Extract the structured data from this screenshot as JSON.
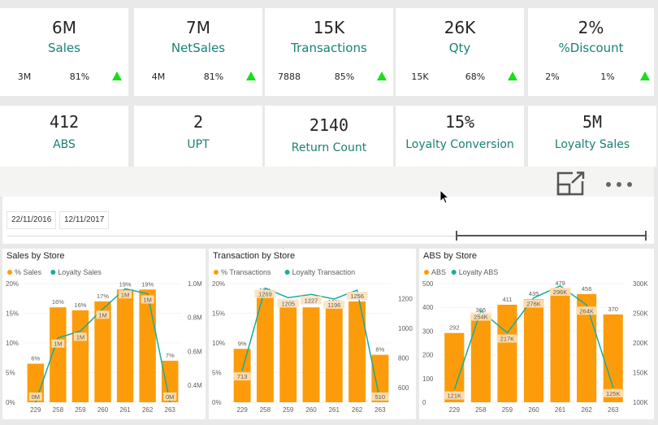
{
  "kpis_row1": [
    {
      "value": "6M",
      "label": "Sales",
      "prev": "3M",
      "pct": "81%",
      "trend": "up"
    },
    {
      "value": "7M",
      "label": "NetSales",
      "prev": "4M",
      "pct": "81%",
      "trend": "up"
    },
    {
      "value": "15K",
      "label": "Transactions",
      "prev": "7888",
      "pct": "85%",
      "trend": "up"
    },
    {
      "value": "26K",
      "label": "Qty",
      "prev": "15K",
      "pct": "68%",
      "trend": "up"
    },
    {
      "value": "2%",
      "label": "%Discount",
      "prev": "2%",
      "pct": "1%",
      "trend": "up"
    }
  ],
  "kpis_row2": [
    {
      "value": "412",
      "label": "ABS"
    },
    {
      "value": "2",
      "label": "UPT"
    },
    {
      "value": "2140",
      "label": "Return Count"
    },
    {
      "value": "15%",
      "label": "Loyalty Conversion"
    },
    {
      "value": "5M",
      "label": "Loyalty Sales"
    }
  ],
  "toolbar": {
    "focus_mode_icon": "expand-icon",
    "more_options_icon": "ellipsis-icon"
  },
  "date_slicer": {
    "start": "22/11/2016",
    "end": "12/11/2017",
    "range_start_fraction": 0.7,
    "range_end_fraction": 1.0
  },
  "colors": {
    "bar": "#fd9c0a",
    "bar_label_bg": "#fde2bd",
    "line": "#1aab9b",
    "label_teal": "#1a8174",
    "trend_up": "#16e016"
  },
  "chart_data": [
    {
      "type": "bar+line",
      "title": "Sales by Store",
      "legend": [
        "% Sales",
        "Loyalty Sales"
      ],
      "legend_position": "top-left",
      "categories": [
        "229",
        "258",
        "259",
        "260",
        "261",
        "262",
        "263"
      ],
      "series": [
        {
          "name": "% Sales",
          "axis": "left",
          "values": [
            6.5,
            16,
            15.5,
            17,
            19,
            19,
            7
          ],
          "labels": [
            "6%",
            "16%",
            "16%",
            "17%",
            "19%",
            "19%",
            "7%"
          ]
        },
        {
          "name": "Loyalty Sales",
          "axis": "right",
          "values": [
            0.3,
            0.68,
            0.72,
            0.85,
            0.97,
            0.94,
            0.3
          ],
          "labels": [
            "0M",
            "1M",
            "1M",
            "1M",
            "1M",
            "1M",
            "0M"
          ]
        }
      ],
      "left_axis": {
        "ticks": [
          "0%",
          "5%",
          "10%",
          "15%",
          "20%"
        ],
        "range": [
          0,
          20
        ]
      },
      "right_axis": {
        "ticks": [
          "0.4M",
          "0.6M",
          "0.8M",
          "1.0M"
        ],
        "range": [
          0.3,
          1.0
        ]
      }
    },
    {
      "type": "bar+line",
      "title": "Transaction by Store",
      "legend": [
        "% Transactions",
        "Loyalty Transaction"
      ],
      "legend_position": "top-left",
      "categories": [
        "229",
        "258",
        "259",
        "260",
        "261",
        "262",
        "263"
      ],
      "series": [
        {
          "name": "% Transactions",
          "axis": "left",
          "values": [
            9,
            18,
            16,
            16,
            16,
            17,
            8
          ],
          "labels": [
            "9%",
            "18%",
            "16%",
            "16%",
            "16%",
            "17%",
            "8%"
          ]
        },
        {
          "name": "Loyalty Transaction",
          "axis": "right",
          "values": [
            713,
            1269,
            1205,
            1227,
            1196,
            1256,
            510
          ],
          "labels": [
            "713",
            "1269",
            "1205",
            "1227",
            "1196",
            "1256",
            "510"
          ]
        }
      ],
      "left_axis": {
        "ticks": [
          "0%",
          "5%",
          "10%",
          "15%",
          "20%"
        ],
        "range": [
          0,
          20
        ]
      },
      "right_axis": {
        "ticks": [
          "600",
          "800",
          "1000",
          "1200"
        ],
        "range": [
          500,
          1300
        ]
      }
    },
    {
      "type": "bar+line",
      "title": "ABS by Store",
      "legend": [
        "ABS",
        "Loyalty ABS"
      ],
      "legend_position": "top-left",
      "categories": [
        "229",
        "258",
        "259",
        "260",
        "261",
        "262",
        "263"
      ],
      "series": [
        {
          "name": "ABS",
          "axis": "left",
          "values": [
            292,
            366,
            411,
            435,
            479,
            456,
            370
          ],
          "labels": [
            "292",
            "366",
            "411",
            "435",
            "479",
            "456",
            "370"
          ]
        },
        {
          "name": "Loyalty ABS",
          "axis": "right",
          "values": [
            121,
            254,
            217,
            276,
            296,
            264,
            125
          ],
          "labels": [
            "121K",
            "254K",
            "217K",
            "276K",
            "296K",
            "264K",
            "125K"
          ]
        }
      ],
      "left_axis": {
        "ticks": [
          "0",
          "100",
          "200",
          "300",
          "400",
          "500"
        ],
        "range": [
          0,
          500
        ]
      },
      "right_axis": {
        "ticks": [
          "100K",
          "150K",
          "200K",
          "250K",
          "300K"
        ],
        "range": [
          100,
          300
        ]
      }
    }
  ]
}
